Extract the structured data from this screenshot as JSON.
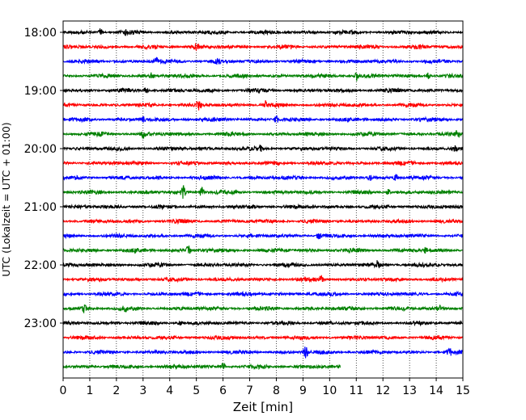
{
  "chart_data": {
    "type": "line",
    "title": "",
    "xlabel": "Zeit  [min]",
    "ylabel": "UTC (Lokalzeit = UTC + 01:00)",
    "xlim": [
      0,
      15
    ],
    "x_ticks": [
      "0",
      "1",
      "2",
      "3",
      "4",
      "5",
      "6",
      "7",
      "8",
      "9",
      "10",
      "11",
      "12",
      "13",
      "14",
      "15"
    ],
    "y_ticks": [
      "18:00",
      "19:00",
      "20:00",
      "21:00",
      "22:00",
      "23:00"
    ],
    "grid": "vertical dotted at each minute",
    "legend": "none",
    "color_cycle": [
      "#000000",
      "#ff0000",
      "#0000ff",
      "#008000"
    ],
    "traces": [
      {
        "start": "18:00",
        "end_min": 15
      },
      {
        "start": "18:15",
        "end_min": 15
      },
      {
        "start": "18:30",
        "end_min": 15
      },
      {
        "start": "18:45",
        "end_min": 15
      },
      {
        "start": "19:00",
        "end_min": 15
      },
      {
        "start": "19:15",
        "end_min": 15
      },
      {
        "start": "19:30",
        "end_min": 15
      },
      {
        "start": "19:45",
        "end_min": 15
      },
      {
        "start": "20:00",
        "end_min": 15
      },
      {
        "start": "20:15",
        "end_min": 15
      },
      {
        "start": "20:30",
        "end_min": 15
      },
      {
        "start": "20:45",
        "end_min": 15
      },
      {
        "start": "21:00",
        "end_min": 15
      },
      {
        "start": "21:15",
        "end_min": 15
      },
      {
        "start": "21:30",
        "end_min": 15
      },
      {
        "start": "21:45",
        "end_min": 15
      },
      {
        "start": "22:00",
        "end_min": 15
      },
      {
        "start": "22:15",
        "end_min": 15
      },
      {
        "start": "22:30",
        "end_min": 15
      },
      {
        "start": "22:45",
        "end_min": 15
      },
      {
        "start": "23:00",
        "end_min": 15
      },
      {
        "start": "23:15",
        "end_min": 15
      },
      {
        "start": "23:30",
        "end_min": 15
      },
      {
        "start": "23:45",
        "end_min": 10.4
      }
    ],
    "events": [
      {
        "trace": 0,
        "x": 1.4,
        "amp": 1.4
      },
      {
        "trace": 0,
        "x": 2.4,
        "amp": 1.3
      },
      {
        "trace": 1,
        "x": 5.0,
        "amp": 1.2
      },
      {
        "trace": 2,
        "x": 5.8,
        "amp": 1.5
      },
      {
        "trace": 2,
        "x": 3.5,
        "amp": 1.3
      },
      {
        "trace": 3,
        "x": 11.0,
        "amp": 2.2
      },
      {
        "trace": 3,
        "x": 13.7,
        "amp": 1.2
      },
      {
        "trace": 3,
        "x": 3.3,
        "amp": 1.2
      },
      {
        "trace": 4,
        "x": 3.1,
        "amp": 1.4
      },
      {
        "trace": 5,
        "x": 5.1,
        "amp": 2.0
      },
      {
        "trace": 5,
        "x": 7.6,
        "amp": 1.2
      },
      {
        "trace": 6,
        "x": 8.0,
        "amp": 1.4
      },
      {
        "trace": 6,
        "x": 3.0,
        "amp": 1.2
      },
      {
        "trace": 7,
        "x": 14.8,
        "amp": 1.5
      },
      {
        "trace": 7,
        "x": 3.0,
        "amp": 1.2
      },
      {
        "trace": 8,
        "x": 14.7,
        "amp": 1.3
      },
      {
        "trace": 8,
        "x": 7.4,
        "amp": 1.2
      },
      {
        "trace": 10,
        "x": 11.5,
        "amp": 1.2
      },
      {
        "trace": 10,
        "x": 12.5,
        "amp": 1.2
      },
      {
        "trace": 11,
        "x": 4.5,
        "amp": 2.6
      },
      {
        "trace": 11,
        "x": 5.2,
        "amp": 2.0
      },
      {
        "trace": 11,
        "x": 12.2,
        "amp": 1.3
      },
      {
        "trace": 14,
        "x": 9.6,
        "amp": 1.3
      },
      {
        "trace": 15,
        "x": 4.7,
        "amp": 1.8
      },
      {
        "trace": 15,
        "x": 13.6,
        "amp": 1.2
      },
      {
        "trace": 16,
        "x": 11.8,
        "amp": 1.3
      },
      {
        "trace": 17,
        "x": 9.7,
        "amp": 1.3
      },
      {
        "trace": 19,
        "x": 0.8,
        "amp": 1.4
      },
      {
        "trace": 19,
        "x": 2.3,
        "amp": 1.3
      },
      {
        "trace": 19,
        "x": 14.1,
        "amp": 1.3
      },
      {
        "trace": 20,
        "x": 4.4,
        "amp": 1.3
      },
      {
        "trace": 22,
        "x": 9.1,
        "amp": 2.2
      },
      {
        "trace": 22,
        "x": 14.5,
        "amp": 1.3
      },
      {
        "trace": 23,
        "x": 6.0,
        "amp": 1.6
      }
    ]
  }
}
